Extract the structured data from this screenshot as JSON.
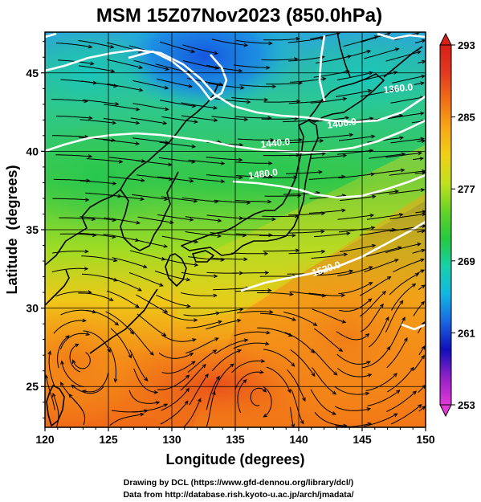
{
  "title": "MSM 15Z07Nov2023 (850.0hPa)",
  "xlabel": "Longitude (degrees)",
  "ylabel": "Latitude  (degrees)",
  "x_ticks": [
    120,
    125,
    130,
    135,
    140,
    145,
    150
  ],
  "y_ticks": [
    25,
    30,
    35,
    40,
    45
  ],
  "xlim": [
    120,
    150
  ],
  "ylim": [
    22.4,
    47.6
  ],
  "colorbar": {
    "ticks": [
      293,
      285,
      277,
      269,
      261,
      253
    ],
    "min": 253,
    "max": 293,
    "colors": [
      "#e23ad8",
      "#9020c8",
      "#1010b8",
      "#1a66e0",
      "#12b6e2",
      "#18d0a8",
      "#28c840",
      "#66d228",
      "#c0e020",
      "#f0d018",
      "#f8a818",
      "#f07018",
      "#e03a20",
      "#d82018"
    ]
  },
  "contours": {
    "labels": [
      "1400.0",
      "1440.0",
      "1480.0",
      "1360.0",
      "1520.0"
    ]
  },
  "credits": {
    "line1": "Drawing by DCL (https://www.gfd-dennou.org/library/dcl/)",
    "line2": "Data from http://database.rish.kyoto-u.ac.jp/arch/jmadata/"
  }
}
